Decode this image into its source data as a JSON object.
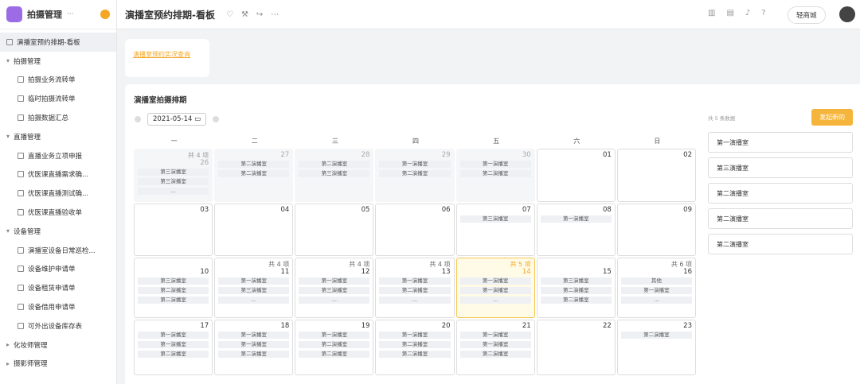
{
  "app": {
    "title": "拍摄管理",
    "more": "···"
  },
  "header": {
    "title": "演播室预约排期-看板",
    "button": "轻商城"
  },
  "sidebar": [
    {
      "label": "演播室预约排期-看板",
      "kind": "active"
    },
    {
      "label": "拍摄管理",
      "kind": "group"
    },
    {
      "label": "拍摄业务流转单",
      "kind": "page"
    },
    {
      "label": "临时拍摄流转单",
      "kind": "page"
    },
    {
      "label": "拍摄数据汇总",
      "kind": "page"
    },
    {
      "label": "直播管理",
      "kind": "group"
    },
    {
      "label": "直播业务立项申报",
      "kind": "page"
    },
    {
      "label": "优医课直播需求确...",
      "kind": "page"
    },
    {
      "label": "优医课直播测试确...",
      "kind": "page"
    },
    {
      "label": "优医课直播验收单",
      "kind": "page"
    },
    {
      "label": "设备管理",
      "kind": "group"
    },
    {
      "label": "演播室设备日常巡检...",
      "kind": "page"
    },
    {
      "label": "设备维护申请单",
      "kind": "page"
    },
    {
      "label": "设备租赁申请单",
      "kind": "page"
    },
    {
      "label": "设备借用申请单",
      "kind": "page"
    },
    {
      "label": "可外出设备库存表",
      "kind": "page"
    },
    {
      "label": "化妆师管理",
      "kind": "closed"
    },
    {
      "label": "摄影师管理",
      "kind": "closed"
    }
  ],
  "link_card": {
    "link": "演播室预约实况查询"
  },
  "calendar": {
    "title": "演播室拍摄排期",
    "date": "2021-05-14",
    "weekdays": [
      "一",
      "二",
      "三",
      "四",
      "五",
      "六",
      "日"
    ],
    "weeks": [
      [
        {
          "day": "26",
          "count": "共 4 项",
          "muted": true,
          "entries": [
            "第三演播室",
            "第三演播室",
            "..."
          ]
        },
        {
          "day": "27",
          "muted": true,
          "entries": [
            "第二演播室",
            "第二演播室"
          ]
        },
        {
          "day": "28",
          "muted": true,
          "entries": [
            "第二演播室",
            "第三演播室"
          ]
        },
        {
          "day": "29",
          "muted": true,
          "entries": [
            "第一演播室",
            "第二演播室"
          ]
        },
        {
          "day": "30",
          "muted": true,
          "entries": [
            "第一演播室",
            "第二演播室"
          ]
        },
        {
          "day": "01",
          "entries": []
        },
        {
          "day": "02",
          "entries": []
        }
      ],
      [
        {
          "day": "03",
          "entries": []
        },
        {
          "day": "04",
          "entries": []
        },
        {
          "day": "05",
          "entries": []
        },
        {
          "day": "06",
          "entries": []
        },
        {
          "day": "07",
          "entries": [
            "第三演播室"
          ]
        },
        {
          "day": "08",
          "entries": [
            "第一演播室"
          ]
        },
        {
          "day": "09",
          "entries": []
        }
      ],
      [
        {
          "day": "10",
          "entries": [
            "第三演播室",
            "第二演播室",
            "第二演播室"
          ]
        },
        {
          "day": "11",
          "count": "共 4 项",
          "entries": [
            "第一演播室",
            "第三演播室",
            "..."
          ]
        },
        {
          "day": "12",
          "count": "共 4 项",
          "entries": [
            "第一演播室",
            "第三演播室",
            "..."
          ]
        },
        {
          "day": "13",
          "count": "共 4 项",
          "entries": [
            "第一演播室",
            "第二演播室",
            "..."
          ]
        },
        {
          "day": "14",
          "count": "共 5 项",
          "today": true,
          "entries": [
            "第一演播室",
            "第一演播室",
            "..."
          ]
        },
        {
          "day": "15",
          "entries": [
            "第三演播室",
            "第二演播室",
            "第二演播室"
          ]
        },
        {
          "day": "16",
          "count": "共 6 项",
          "entries": [
            "其他",
            "第一演播室",
            "..."
          ]
        }
      ],
      [
        {
          "day": "17",
          "entries": [
            "第一演播室",
            "第一演播室",
            "第二演播室"
          ]
        },
        {
          "day": "18",
          "entries": [
            "第一演播室",
            "第一演播室",
            "第二演播室"
          ]
        },
        {
          "day": "19",
          "entries": [
            "第一演播室",
            "第二演播室",
            "第二演播室"
          ]
        },
        {
          "day": "20",
          "entries": [
            "第一演播室",
            "第二演播室",
            "第二演播室"
          ]
        },
        {
          "day": "21",
          "entries": [
            "第一演播室",
            "第一演播室",
            "第二演播室"
          ]
        },
        {
          "day": "22",
          "entries": []
        },
        {
          "day": "23",
          "entries": [
            "第二演播室"
          ]
        }
      ]
    ]
  },
  "panel": {
    "count": "共 5 条数据",
    "button": "发起新的",
    "items": [
      "第一演播室",
      "第三演播室",
      "第二演播室",
      "第二演播室",
      "第二演播室"
    ]
  }
}
